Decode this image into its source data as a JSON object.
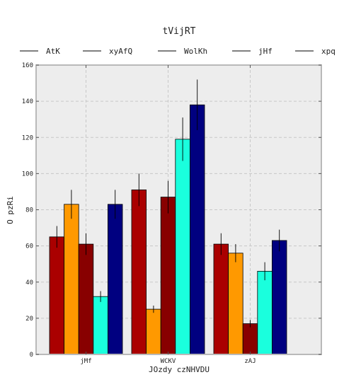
{
  "chart_data": {
    "type": "bar",
    "title": "tVijRT",
    "xlabel": "JOzdy czNHVDU",
    "ylabel": "O pzRi",
    "categories": [
      "jMf",
      "WCKV",
      "zAJ"
    ],
    "ylim": [
      0,
      160
    ],
    "yticks": [
      0,
      20,
      40,
      60,
      80,
      100,
      120,
      140,
      160
    ],
    "grid": true,
    "legend_position": "top",
    "series": [
      {
        "name": "AtK",
        "color": "#aa0000",
        "values": [
          65,
          91,
          61
        ],
        "errors": [
          6,
          9,
          6
        ]
      },
      {
        "name": "xyAfQ",
        "color": "#ff9900",
        "values": [
          83,
          25,
          56
        ],
        "errors": [
          8,
          2,
          5
        ]
      },
      {
        "name": "WolKh",
        "color": "#880000",
        "values": [
          61,
          87,
          17
        ],
        "errors": [
          6,
          9,
          2
        ]
      },
      {
        "name": "jHf",
        "color": "#1affdd",
        "values": [
          32,
          119,
          46
        ],
        "errors": [
          3,
          12,
          5
        ]
      },
      {
        "name": "xpq",
        "color": "#000080",
        "values": [
          83,
          138,
          63
        ],
        "errors": [
          8,
          14,
          6
        ]
      }
    ]
  }
}
